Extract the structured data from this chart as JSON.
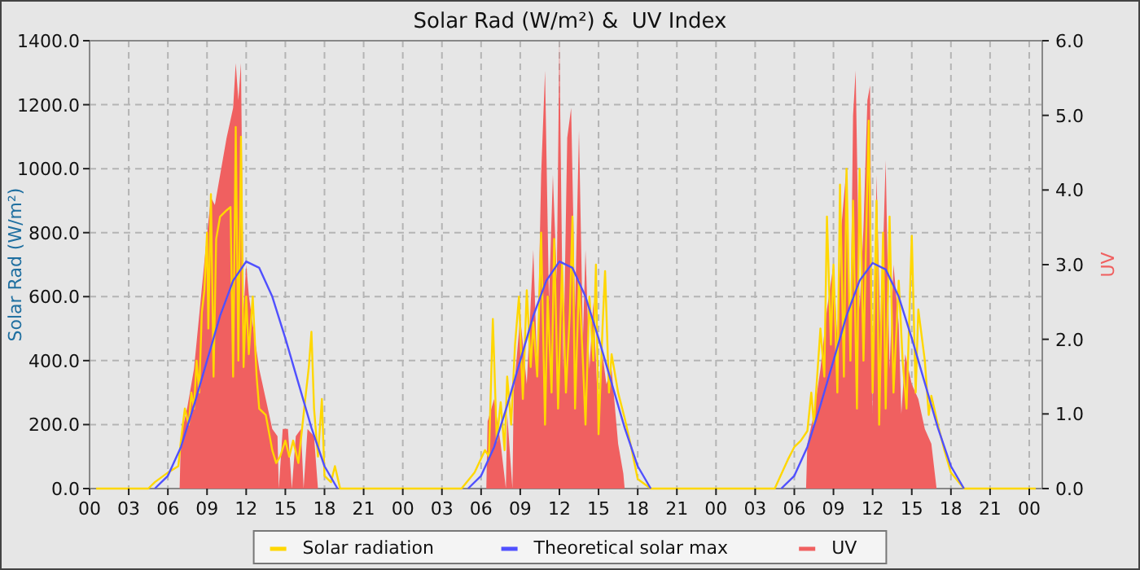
{
  "chart_data": {
    "type": "line",
    "title": "Solar Rad (W/m²) &  UV Index",
    "ylabel": "Solar Rad (W/m²)",
    "y2label": "UV",
    "xlim": [
      0,
      73
    ],
    "xticks": [
      {
        "value": 0,
        "label": "00"
      },
      {
        "value": 3,
        "label": "03"
      },
      {
        "value": 6,
        "label": "06"
      },
      {
        "value": 9,
        "label": "09"
      },
      {
        "value": 12,
        "label": "12"
      },
      {
        "value": 15,
        "label": "15"
      },
      {
        "value": 18,
        "label": "18"
      },
      {
        "value": 21,
        "label": "21"
      },
      {
        "value": 24,
        "label": "00"
      },
      {
        "value": 27,
        "label": "03"
      },
      {
        "value": 30,
        "label": "06"
      },
      {
        "value": 33,
        "label": "09"
      },
      {
        "value": 36,
        "label": "12"
      },
      {
        "value": 39,
        "label": "15"
      },
      {
        "value": 42,
        "label": "18"
      },
      {
        "value": 45,
        "label": "21"
      },
      {
        "value": 48,
        "label": "00"
      },
      {
        "value": 51,
        "label": "03"
      },
      {
        "value": 54,
        "label": "06"
      },
      {
        "value": 57,
        "label": "09"
      },
      {
        "value": 60,
        "label": "12"
      },
      {
        "value": 63,
        "label": "15"
      },
      {
        "value": 66,
        "label": "18"
      },
      {
        "value": 69,
        "label": "21"
      },
      {
        "value": 72,
        "label": "00"
      }
    ],
    "ylim": [
      0,
      1400
    ],
    "yticks": [
      {
        "value": 0,
        "label": "0.0"
      },
      {
        "value": 200,
        "label": "200.0"
      },
      {
        "value": 400,
        "label": "400.0"
      },
      {
        "value": 600,
        "label": "600.0"
      },
      {
        "value": 800,
        "label": "800.0"
      },
      {
        "value": 1000,
        "label": "1000.0"
      },
      {
        "value": 1200,
        "label": "1200.0"
      },
      {
        "value": 1400,
        "label": "1400.0"
      }
    ],
    "y2lim": [
      0,
      6
    ],
    "y2ticks": [
      {
        "value": 0,
        "label": "0.0"
      },
      {
        "value": 1,
        "label": "1.0"
      },
      {
        "value": 2,
        "label": "2.0"
      },
      {
        "value": 3,
        "label": "3.0"
      },
      {
        "value": 4,
        "label": "4.0"
      },
      {
        "value": 5,
        "label": "5.0"
      },
      {
        "value": 6,
        "label": "6.0"
      }
    ],
    "grid": true,
    "legend": "bottom",
    "series": [
      {
        "name": "Solar radiation",
        "color": "#ffd700",
        "x": [
          0.5,
          4.5,
          5,
          6,
          6.8,
          7,
          7.3,
          7.6,
          7.8,
          8,
          8.2,
          8.4,
          8.6,
          8.8,
          9,
          9.1,
          9.3,
          9.5,
          9.7,
          10,
          10.5,
          10.8,
          11,
          11.2,
          11.4,
          11.6,
          11.8,
          12,
          12.2,
          12.5,
          12.8,
          13,
          13.5,
          14,
          14.3,
          14.6,
          15,
          15.3,
          15.6,
          16,
          16.5,
          16.8,
          17,
          17.2,
          17.5,
          17.8,
          18,
          18.5,
          18.8,
          19.2,
          28.5,
          29.5,
          30.3,
          30.6,
          30.9,
          31.2,
          31.5,
          31.8,
          32,
          32.3,
          32.6,
          32.9,
          33.2,
          33.5,
          33.8,
          34,
          34.3,
          34.6,
          34.9,
          35.1,
          35.4,
          35.6,
          35.9,
          36.2,
          36.5,
          36.8,
          37,
          37.2,
          37.5,
          37.8,
          38,
          38.3,
          38.6,
          38.8,
          39,
          39.3,
          39.5,
          39.8,
          40,
          40.5,
          41,
          41.5,
          42,
          43,
          52.5,
          53.5,
          54,
          54.5,
          55,
          55.3,
          55.5,
          56,
          56.3,
          56.5,
          56.8,
          57,
          57.3,
          57.5,
          57.8,
          58,
          58.3,
          58.5,
          58.8,
          59,
          59.3,
          59.7,
          60,
          60.3,
          60.5,
          60.8,
          61,
          61.3,
          61.6,
          62,
          62.3,
          62.6,
          63,
          63.3,
          63.5,
          64,
          64.3,
          64.5,
          65,
          65.5,
          66,
          67,
          72.5
        ],
        "values": [
          0,
          0,
          20,
          50,
          70,
          150,
          250,
          200,
          300,
          250,
          400,
          300,
          550,
          620,
          800,
          500,
          920,
          350,
          780,
          850,
          870,
          880,
          350,
          1130,
          400,
          1100,
          380,
          600,
          420,
          600,
          350,
          250,
          230,
          120,
          80,
          100,
          150,
          100,
          150,
          80,
          270,
          380,
          490,
          250,
          100,
          280,
          40,
          20,
          70,
          0,
          0,
          50,
          120,
          100,
          530,
          150,
          270,
          120,
          350,
          200,
          450,
          600,
          280,
          620,
          380,
          520,
          350,
          800,
          200,
          600,
          300,
          780,
          250,
          700,
          300,
          550,
          850,
          250,
          650,
          400,
          200,
          600,
          400,
          700,
          170,
          500,
          680,
          300,
          420,
          300,
          220,
          130,
          30,
          0,
          0,
          90,
          130,
          150,
          180,
          300,
          200,
          500,
          350,
          850,
          450,
          700,
          300,
          950,
          350,
          1000,
          400,
          900,
          250,
          1000,
          400,
          1150,
          300,
          900,
          200,
          800,
          250,
          850,
          300,
          650,
          400,
          250,
          790,
          300,
          560,
          400,
          230,
          290,
          200,
          120,
          50,
          0,
          0
        ]
      },
      {
        "name": "Theoretical solar max",
        "color": "#5050ff",
        "x": [
          5,
          6,
          7,
          8,
          9,
          10,
          11,
          12,
          13,
          14,
          15,
          16,
          17,
          18,
          19,
          24,
          29,
          30,
          31,
          32,
          33,
          34,
          35,
          36,
          37,
          38,
          39,
          40,
          41,
          42,
          43,
          48,
          53,
          54,
          55,
          56,
          57,
          58,
          59,
          60,
          61,
          62,
          63,
          64,
          65,
          66,
          67
        ],
        "values": [
          0,
          40,
          130,
          260,
          400,
          540,
          650,
          710,
          690,
          600,
          470,
          330,
          190,
          70,
          0,
          null,
          0,
          40,
          130,
          260,
          400,
          540,
          650,
          710,
          690,
          600,
          470,
          330,
          190,
          70,
          0,
          null,
          0,
          40,
          130,
          260,
          400,
          540,
          650,
          705,
          685,
          600,
          470,
          330,
          190,
          70,
          0
        ]
      },
      {
        "name": "UV",
        "color": "#f06060",
        "type": "area",
        "axis": "y2",
        "x": [
          0.5,
          6.9,
          7,
          7.5,
          8,
          8.5,
          9,
          9.3,
          9.6,
          10,
          10.5,
          11,
          11.2,
          11.4,
          11.6,
          11.8,
          12,
          12.2,
          12.5,
          13,
          13.5,
          14,
          14.4,
          14.5,
          14.8,
          15.2,
          15.5,
          15.8,
          16.2,
          16.4,
          16.7,
          17.2,
          17.5,
          30.4,
          30.5,
          31,
          31.5,
          31.9,
          32,
          32.4,
          32.5,
          33,
          33.5,
          34,
          34.3,
          34.6,
          34.9,
          35.2,
          35.5,
          35.8,
          36,
          36.3,
          36.6,
          36.9,
          37.2,
          37.5,
          37.8,
          38,
          38.3,
          38.6,
          39,
          39.3,
          39.6,
          40,
          40.5,
          40.9,
          41,
          54.9,
          55,
          55.5,
          56,
          56.5,
          57,
          57.3,
          57.6,
          58,
          58.3,
          58.5,
          58.7,
          59,
          59.3,
          59.6,
          59.8,
          60,
          60.3,
          60.6,
          61,
          61.3,
          61.6,
          62,
          62.2,
          62.5,
          63,
          63.5,
          64,
          64.5,
          64.9,
          72.5
        ],
        "values": [
          0,
          0,
          0.7,
          1.1,
          1.6,
          2.5,
          3.4,
          3.9,
          3.8,
          4.2,
          4.7,
          5.1,
          5.7,
          5.2,
          5.7,
          2.4,
          3.0,
          2.6,
          2.2,
          1.6,
          1.2,
          0.8,
          0.7,
          0,
          0.8,
          0.8,
          0,
          0.7,
          0.8,
          0,
          0.8,
          0.7,
          0,
          0,
          0.9,
          1.2,
          0.6,
          0,
          1.0,
          0,
          1.3,
          2.3,
          1.4,
          3.2,
          1.6,
          4.2,
          5.6,
          2.5,
          4.2,
          2.8,
          6.0,
          1.6,
          4.7,
          5.1,
          2.4,
          4.8,
          2.0,
          3.2,
          1.6,
          2.5,
          0.9,
          1.8,
          1.4,
          1.6,
          0.6,
          0.2,
          0,
          0,
          0.6,
          1.0,
          1.6,
          2.4,
          3.0,
          2.0,
          3.5,
          4.3,
          2.0,
          5.0,
          5.6,
          2.4,
          3.5,
          5.2,
          5.4,
          1.0,
          4.2,
          2.0,
          4.4,
          1.6,
          3.0,
          2.2,
          1.0,
          1.8,
          1.4,
          1.2,
          0.8,
          0.6,
          0,
          0
        ]
      }
    ]
  }
}
